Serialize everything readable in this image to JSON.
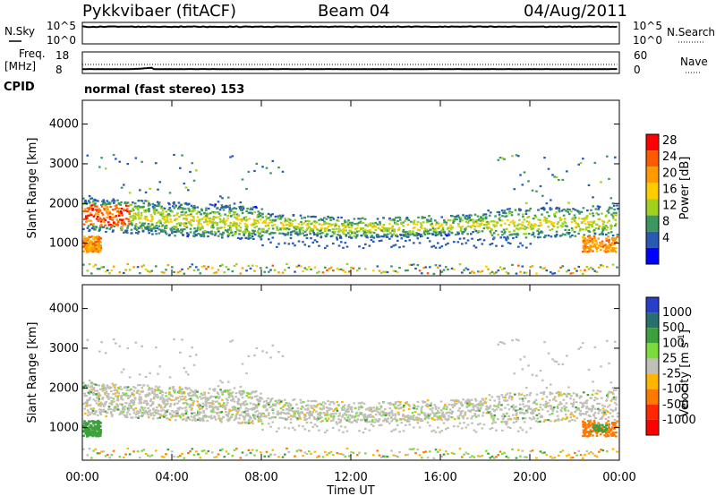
{
  "header": {
    "station": "Pykkvibaer (fitACF)",
    "beam": "Beam 04",
    "date": "04/Aug/2011"
  },
  "top_panels": {
    "nsky_label": "N.Sky",
    "nsky_ticks": [
      "10^5",
      "10^0"
    ],
    "nsky_right_ticks": [
      "10^5",
      "10^0"
    ],
    "nsearch_label": "N.Search",
    "freq_label_1": "Freq.",
    "freq_label_2": "[MHz]",
    "freq_ticks": [
      "18",
      "8"
    ],
    "nave_ticks": [
      "60",
      "0"
    ],
    "nave_label": "Nave",
    "cpid_label": "CPID",
    "mode_text": "normal (fast stereo) 153"
  },
  "axes": {
    "ylabel": "Slant Range [km]",
    "xlabel": "Time UT",
    "y_ticks": [
      "4000",
      "3000",
      "2000",
      "1000"
    ],
    "x_ticks": [
      "00:00",
      "04:00",
      "08:00",
      "12:00",
      "16:00",
      "20:00",
      "00:00"
    ]
  },
  "colorbars": {
    "power": {
      "label": "Power [dB]",
      "ticks": [
        "28",
        "24",
        "20",
        "16",
        "12",
        "8",
        "4"
      ],
      "colors": [
        "#ff0000",
        "#ff5a00",
        "#ff9a00",
        "#ffcc00",
        "#a0d020",
        "#3c9660",
        "#285ab4",
        "#0000ff"
      ]
    },
    "velocity": {
      "label": "Velocity [m s",
      "label_sup": "-1",
      "label_end": "]",
      "ticks": [
        "1000",
        "500",
        "100",
        "25",
        "-25",
        "-100",
        "-500",
        "-1000"
      ],
      "colors": [
        "#2840c8",
        "#287070",
        "#3ca03c",
        "#7cdc3c",
        "#c0c0b8",
        "#ffb400",
        "#ff7800",
        "#ff2800",
        "#ff0000"
      ]
    }
  },
  "chart_data": [
    {
      "type": "heatmap",
      "title": "Power",
      "xlabel": "Time UT",
      "ylabel": "Slant Range [km]",
      "x_range_hours": [
        0,
        24
      ],
      "y_range_km": [
        180,
        4600
      ],
      "value_range": [
        0,
        30
      ],
      "colorbar_label": "Power [dB]",
      "features": [
        {
          "name": "main band",
          "time_hours": [
            0,
            24
          ],
          "range_km_start": 1750,
          "range_km_mid": 1400,
          "range_km_end": 1600,
          "power_db": 14
        },
        {
          "name": "early strong echoes",
          "time_hours": [
            0,
            2
          ],
          "range_km": [
            1450,
            2000
          ],
          "power_db": 24
        },
        {
          "name": "near-range patch",
          "time_hours": [
            0,
            0.8
          ],
          "range_km": [
            800,
            1200
          ],
          "power_db": 24
        },
        {
          "name": "upper echoes",
          "time_hours": [
            0,
            9
          ],
          "range_km": [
            2000,
            3300
          ],
          "power_db": 6
        },
        {
          "name": "evening upper echoes",
          "time_hours": [
            18.5,
            24
          ],
          "range_km": [
            1800,
            3100
          ],
          "power_db": 8
        },
        {
          "name": "late near-range patch",
          "time_hours": [
            22.3,
            24
          ],
          "range_km": [
            800,
            1200
          ],
          "power_db": 24
        }
      ]
    },
    {
      "type": "heatmap",
      "title": "Velocity",
      "xlabel": "Time UT",
      "ylabel": "Slant Range [km]",
      "x_range_hours": [
        0,
        24
      ],
      "y_range_km": [
        180,
        4600
      ],
      "value_range": [
        -1000,
        1000
      ],
      "colorbar_label": "Velocity [m s-1]",
      "features": [
        {
          "name": "main band",
          "time_hours": [
            0,
            24
          ],
          "range_km_start": 1750,
          "range_km_mid": 1400,
          "range_km_end": 1600,
          "velocity": 0
        },
        {
          "name": "early positive velocity",
          "time_hours": [
            0,
            0.8
          ],
          "range_km": [
            800,
            1200
          ],
          "velocity": 300
        },
        {
          "name": "late negative velocity",
          "time_hours": [
            22.3,
            24
          ],
          "range_km": [
            800,
            1200
          ],
          "velocity": -300
        },
        {
          "name": "late positive patch",
          "time_hours": [
            22.7,
            23.4
          ],
          "range_km": [
            900,
            1100
          ],
          "velocity": 300
        }
      ]
    },
    {
      "type": "line",
      "title": "N.Sky",
      "x_range_hours": [
        0,
        24
      ],
      "y_scale": "log",
      "y_range": [
        1,
        100000
      ],
      "typical_value": 10000
    },
    {
      "type": "line",
      "title": "Freq. [MHz]",
      "x_range_hours": [
        0,
        24
      ],
      "y_range": [
        8,
        18
      ],
      "series": [
        {
          "name": "Freq.",
          "typical_value": 10
        },
        {
          "name": "Nave",
          "typical_value": 25
        }
      ]
    }
  ]
}
